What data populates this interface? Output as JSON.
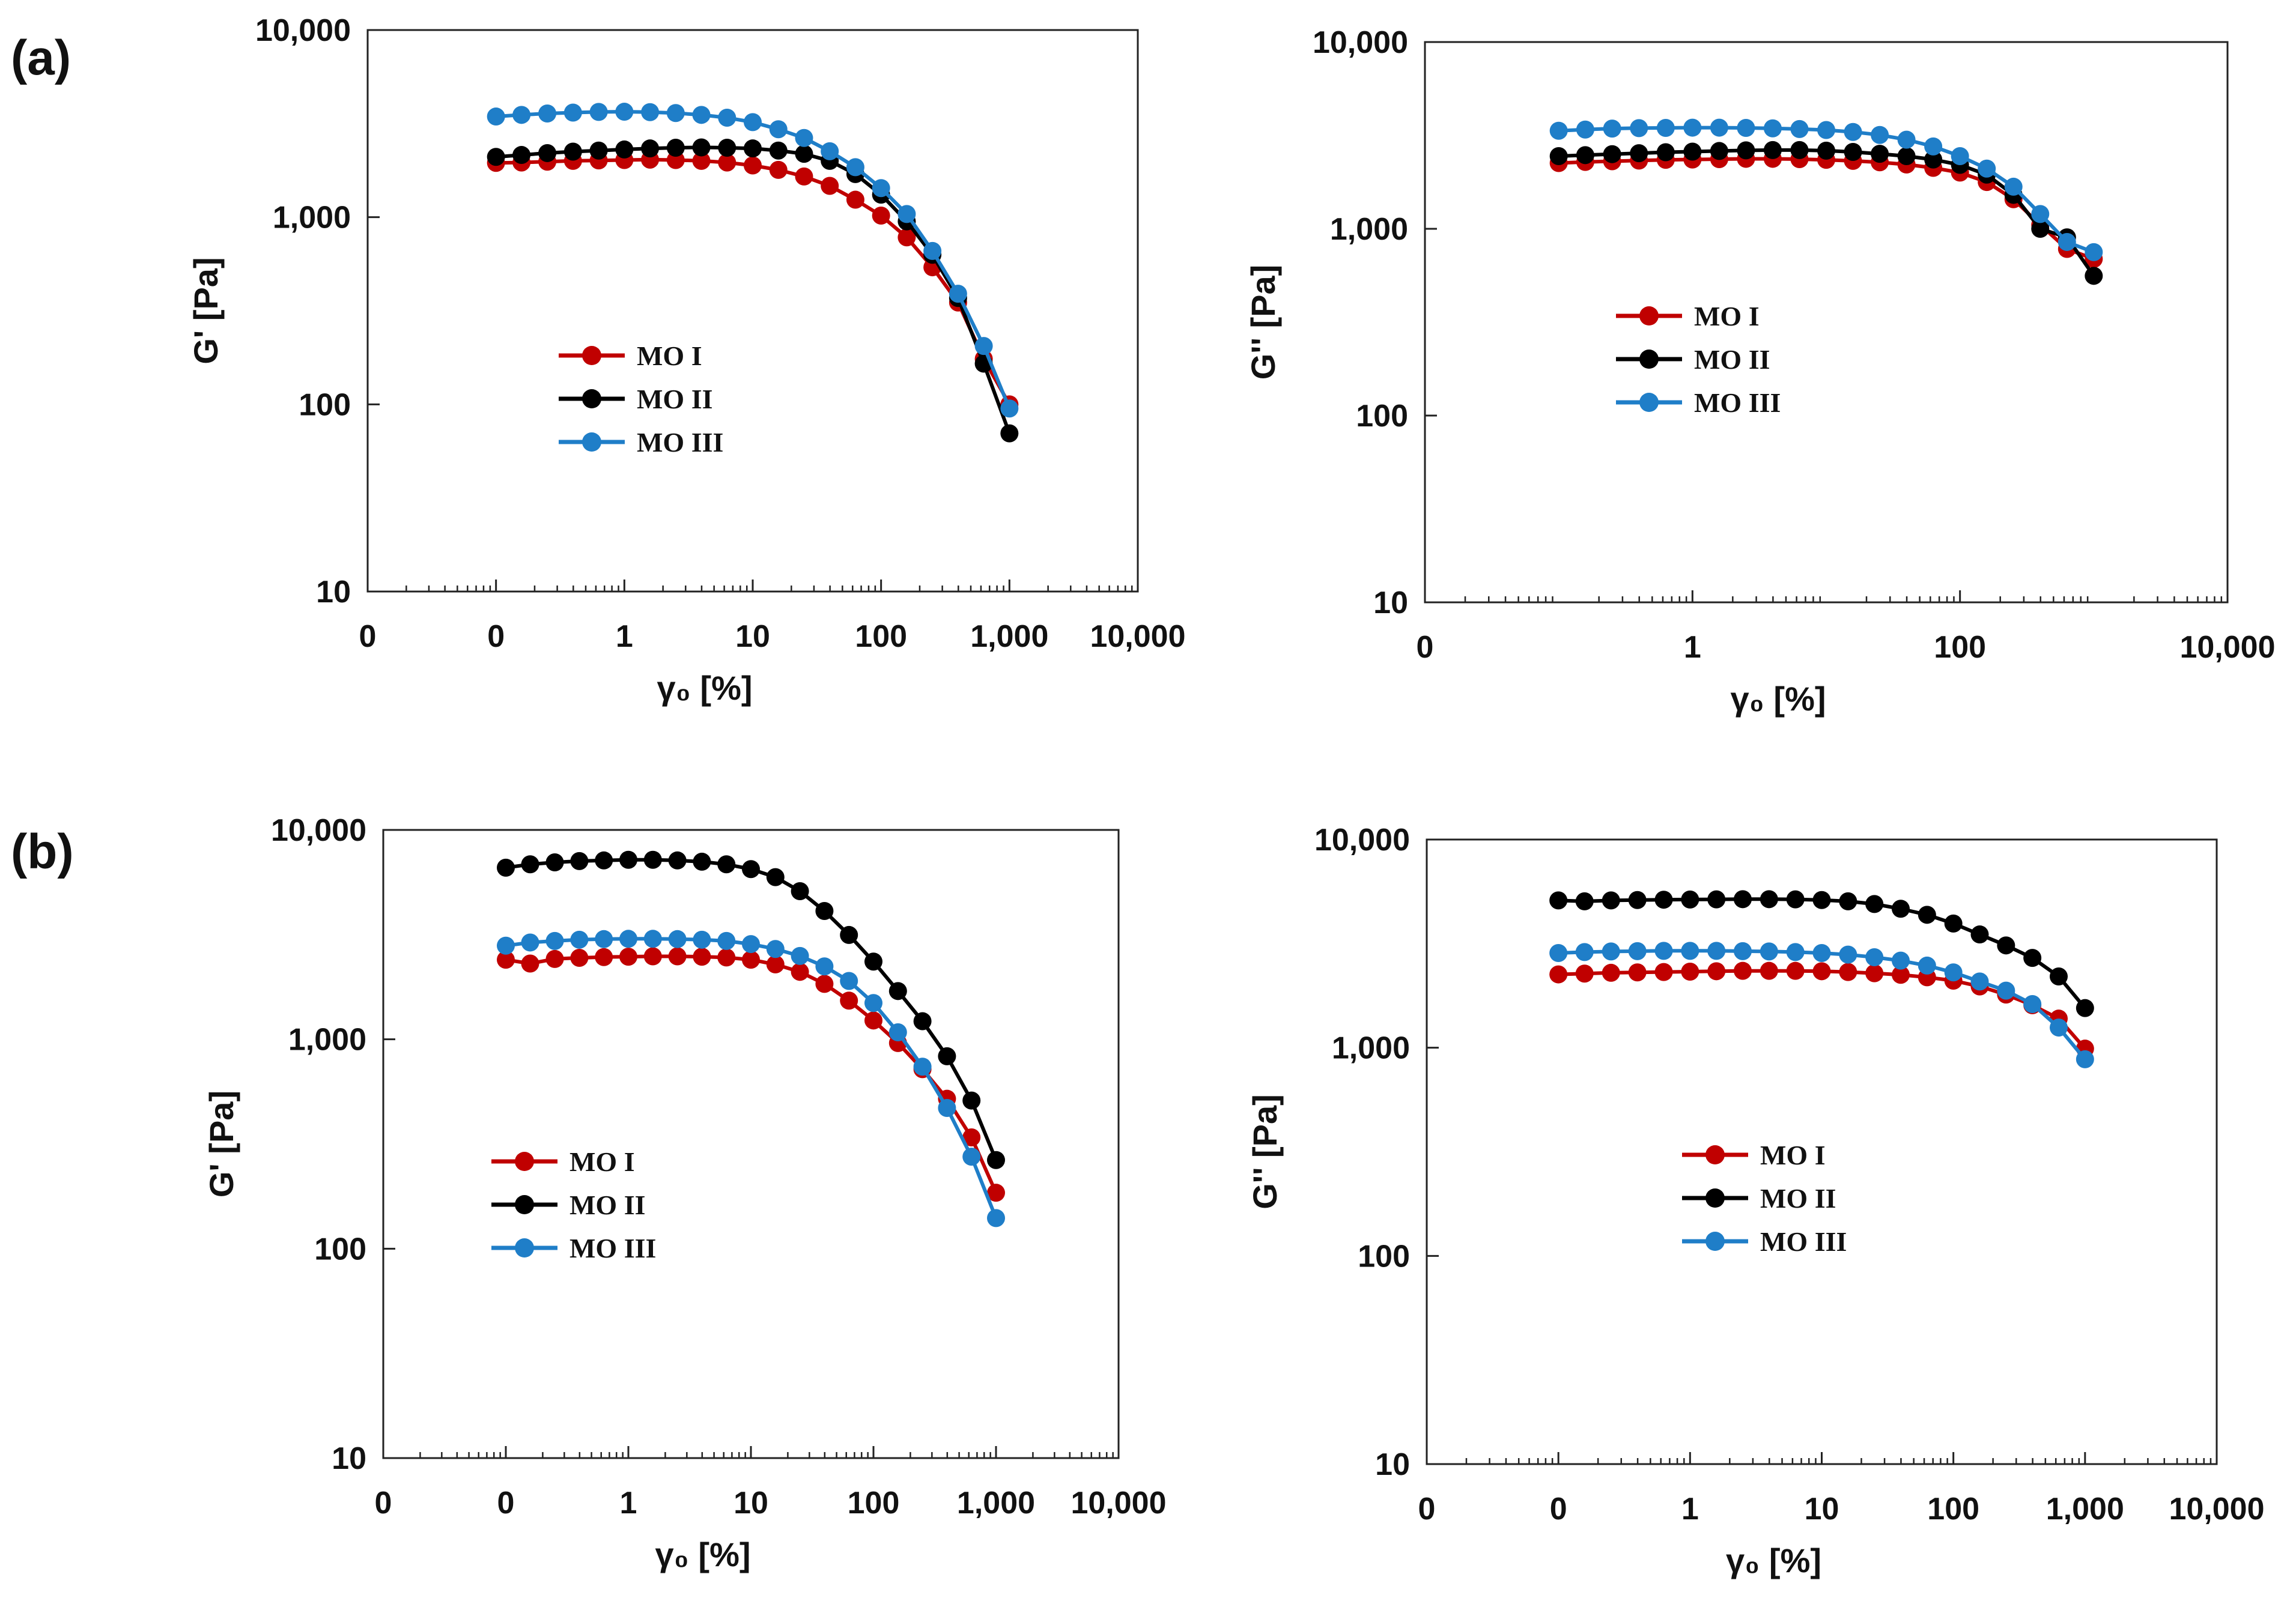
{
  "figure": {
    "panel_labels": [
      "(a)",
      "(b)"
    ]
  },
  "colors": {
    "MO I": "#c00000",
    "MO II": "#000000",
    "MO III": "#1f7ec8"
  },
  "chart_data": [
    {
      "panel": "(a)",
      "type": "line",
      "ylabel": "G' [Pa]",
      "xlabel": "γ₀ [%]",
      "xscale": "log",
      "yscale": "log",
      "xlim": [
        0.01,
        10000
      ],
      "ylim": [
        10,
        10000
      ],
      "xticks": [
        0.01,
        0.1,
        1,
        10,
        100,
        1000,
        10000
      ],
      "xtick_labels": [
        "0",
        "0",
        "1",
        "10",
        "100",
        "1,000",
        "10,000"
      ],
      "yticks": [
        10,
        100,
        1000,
        10000
      ],
      "ytick_labels": [
        "10",
        "100",
        "1,000",
        "10,000"
      ],
      "legend": [
        "MO I",
        "MO II",
        "MO III"
      ],
      "series": [
        {
          "name": "MO I",
          "x": [
            0.1,
            0.158,
            0.251,
            0.398,
            0.631,
            1,
            1.585,
            2.512,
            3.981,
            6.31,
            10,
            15.85,
            25.12,
            39.81,
            63.1,
            100,
            158.5,
            251.2,
            398.1,
            631,
            1000
          ],
          "y": [
            1950,
            1960,
            1980,
            2000,
            2010,
            2020,
            2030,
            2020,
            2000,
            1960,
            1890,
            1790,
            1650,
            1470,
            1240,
            1020,
            780,
            540,
            350,
            175,
            100
          ]
        },
        {
          "name": "MO II",
          "x": [
            0.1,
            0.158,
            0.251,
            0.398,
            0.631,
            1,
            1.585,
            2.512,
            3.981,
            6.31,
            10,
            15.85,
            25.12,
            39.81,
            63.1,
            100,
            158.5,
            251.2,
            398.1,
            631,
            1000
          ],
          "y": [
            2100,
            2150,
            2200,
            2240,
            2270,
            2300,
            2330,
            2350,
            2360,
            2350,
            2330,
            2270,
            2180,
            2000,
            1700,
            1320,
            950,
            630,
            370,
            165,
            70
          ]
        },
        {
          "name": "MO III",
          "x": [
            0.1,
            0.158,
            0.251,
            0.398,
            0.631,
            1,
            1.585,
            2.512,
            3.981,
            6.31,
            10,
            15.85,
            25.12,
            39.81,
            63.1,
            100,
            158.5,
            251.2,
            398.1,
            631,
            1000
          ],
          "y": [
            3450,
            3520,
            3580,
            3620,
            3650,
            3660,
            3640,
            3600,
            3520,
            3400,
            3220,
            2950,
            2650,
            2250,
            1850,
            1430,
            1040,
            660,
            390,
            205,
            95
          ]
        }
      ]
    },
    {
      "panel": "(a)",
      "type": "line",
      "ylabel": "G'' [Pa]",
      "xlabel": "γ₀ [%]",
      "xscale": "log",
      "yscale": "log",
      "xlim": [
        0.01,
        10000
      ],
      "ylim": [
        10,
        10000
      ],
      "xticks": [
        0.01,
        1,
        100,
        10000
      ],
      "xtick_labels": [
        "0",
        "1",
        "100",
        "10,000"
      ],
      "yticks": [
        10,
        100,
        1000,
        10000
      ],
      "ytick_labels": [
        "10",
        "100",
        "1,000",
        "10,000"
      ],
      "legend": [
        "MO I",
        "MO II",
        "MO III"
      ],
      "series": [
        {
          "name": "MO I",
          "x": [
            0.1,
            0.158,
            0.251,
            0.398,
            0.631,
            1,
            1.585,
            2.512,
            3.981,
            6.31,
            10,
            15.85,
            25.12,
            39.81,
            63.1,
            100,
            158.5,
            251.2,
            398.1,
            631,
            1000
          ],
          "y": [
            2250,
            2280,
            2300,
            2320,
            2340,
            2350,
            2360,
            2370,
            2370,
            2360,
            2340,
            2310,
            2270,
            2210,
            2120,
            2000,
            1780,
            1440,
            1050,
            780,
            690
          ]
        },
        {
          "name": "MO II",
          "x": [
            0.1,
            0.158,
            0.251,
            0.398,
            0.631,
            1,
            1.585,
            2.512,
            3.981,
            6.31,
            10,
            15.85,
            25.12,
            39.81,
            63.1,
            100,
            158.5,
            251.2,
            398.1,
            631,
            1000
          ],
          "y": [
            2450,
            2480,
            2510,
            2540,
            2570,
            2590,
            2610,
            2630,
            2640,
            2640,
            2620,
            2580,
            2520,
            2450,
            2350,
            2200,
            1950,
            1520,
            1000,
            900,
            560
          ]
        },
        {
          "name": "MO III",
          "x": [
            0.1,
            0.158,
            0.251,
            0.398,
            0.631,
            1,
            1.585,
            2.512,
            3.981,
            6.31,
            10,
            15.85,
            25.12,
            39.81,
            63.1,
            100,
            158.5,
            251.2,
            398.1,
            631,
            1000
          ],
          "y": [
            3350,
            3400,
            3440,
            3460,
            3470,
            3480,
            3480,
            3470,
            3450,
            3420,
            3380,
            3300,
            3180,
            3000,
            2760,
            2450,
            2100,
            1680,
            1200,
            850,
            750
          ]
        }
      ]
    },
    {
      "panel": "(b)",
      "type": "line",
      "ylabel": "G' [Pa]",
      "xlabel": "γ₀ [%]",
      "xscale": "log",
      "yscale": "log",
      "xlim": [
        0.01,
        10000
      ],
      "ylim": [
        10,
        10000
      ],
      "xticks": [
        0.01,
        0.1,
        1,
        10,
        100,
        1000,
        10000
      ],
      "xtick_labels": [
        "0",
        "0",
        "1",
        "10",
        "100",
        "1,000",
        "10,000"
      ],
      "yticks": [
        10,
        100,
        1000,
        10000
      ],
      "ytick_labels": [
        "10",
        "100",
        "1,000",
        "10,000"
      ],
      "legend": [
        "MO I",
        "MO II",
        "MO III"
      ],
      "series": [
        {
          "name": "MO I",
          "x": [
            0.1,
            0.158,
            0.251,
            0.398,
            0.631,
            1,
            1.585,
            2.512,
            3.981,
            6.31,
            10,
            15.85,
            25.12,
            39.81,
            63.1,
            100,
            158.5,
            251.2,
            398.1,
            631,
            1000
          ],
          "y": [
            2400,
            2300,
            2420,
            2450,
            2470,
            2480,
            2490,
            2490,
            2480,
            2460,
            2400,
            2280,
            2100,
            1840,
            1530,
            1230,
            960,
            720,
            520,
            340,
            185
          ]
        },
        {
          "name": "MO II",
          "x": [
            0.1,
            0.158,
            0.251,
            0.398,
            0.631,
            1,
            1.585,
            2.512,
            3.981,
            6.31,
            10,
            15.85,
            25.12,
            39.81,
            63.1,
            100,
            158.5,
            251.2,
            398.1,
            631,
            1000
          ],
          "y": [
            6600,
            6850,
            7000,
            7100,
            7150,
            7200,
            7200,
            7150,
            7050,
            6850,
            6500,
            5950,
            5100,
            4100,
            3150,
            2350,
            1700,
            1220,
            830,
            510,
            265
          ]
        },
        {
          "name": "MO III",
          "x": [
            0.1,
            0.158,
            0.251,
            0.398,
            0.631,
            1,
            1.585,
            2.512,
            3.981,
            6.31,
            10,
            15.85,
            25.12,
            39.81,
            63.1,
            100,
            158.5,
            251.2,
            398.1,
            631,
            1000
          ],
          "y": [
            2800,
            2900,
            2950,
            2990,
            3010,
            3020,
            3020,
            3010,
            2990,
            2950,
            2850,
            2700,
            2500,
            2230,
            1900,
            1490,
            1080,
            740,
            470,
            275,
            140
          ]
        }
      ]
    },
    {
      "panel": "(b)",
      "type": "line",
      "ylabel": "G'' [Pa]",
      "xlabel": "γ₀ [%]",
      "xscale": "log",
      "yscale": "log",
      "xlim": [
        0.01,
        10000
      ],
      "ylim": [
        10,
        10000
      ],
      "xticks": [
        0.01,
        0.1,
        1,
        10,
        100,
        1000,
        10000
      ],
      "xtick_labels": [
        "0",
        "0",
        "1",
        "10",
        "100",
        "1,000",
        "10,000"
      ],
      "yticks": [
        10,
        100,
        1000,
        10000
      ],
      "ytick_labels": [
        "10",
        "100",
        "1,000",
        "10,000"
      ],
      "legend": [
        "MO I",
        "MO II",
        "MO III"
      ],
      "series": [
        {
          "name": "MO I",
          "x": [
            0.1,
            0.158,
            0.251,
            0.398,
            0.631,
            1,
            1.585,
            2.512,
            3.981,
            6.31,
            10,
            15.85,
            25.12,
            39.81,
            63.1,
            100,
            158.5,
            251.2,
            398.1,
            631,
            1000
          ],
          "y": [
            2250,
            2270,
            2290,
            2300,
            2310,
            2320,
            2330,
            2340,
            2340,
            2340,
            2330,
            2310,
            2280,
            2240,
            2180,
            2100,
            1970,
            1800,
            1600,
            1380,
            990
          ]
        },
        {
          "name": "MO II",
          "x": [
            0.1,
            0.158,
            0.251,
            0.398,
            0.631,
            1,
            1.585,
            2.512,
            3.981,
            6.31,
            10,
            15.85,
            25.12,
            39.81,
            63.1,
            100,
            158.5,
            251.2,
            398.1,
            631,
            1000
          ],
          "y": [
            5100,
            5050,
            5100,
            5120,
            5140,
            5150,
            5160,
            5170,
            5170,
            5160,
            5120,
            5050,
            4900,
            4650,
            4350,
            3950,
            3500,
            3100,
            2700,
            2200,
            1550
          ]
        },
        {
          "name": "MO III",
          "x": [
            0.1,
            0.158,
            0.251,
            0.398,
            0.631,
            1,
            1.585,
            2.512,
            3.981,
            6.31,
            10,
            15.85,
            25.12,
            39.81,
            63.1,
            100,
            158.5,
            251.2,
            398.1,
            631,
            1000
          ],
          "y": [
            2850,
            2880,
            2900,
            2910,
            2920,
            2920,
            2920,
            2910,
            2900,
            2880,
            2850,
            2800,
            2720,
            2620,
            2480,
            2300,
            2080,
            1880,
            1620,
            1250,
            880
          ]
        }
      ]
    }
  ]
}
